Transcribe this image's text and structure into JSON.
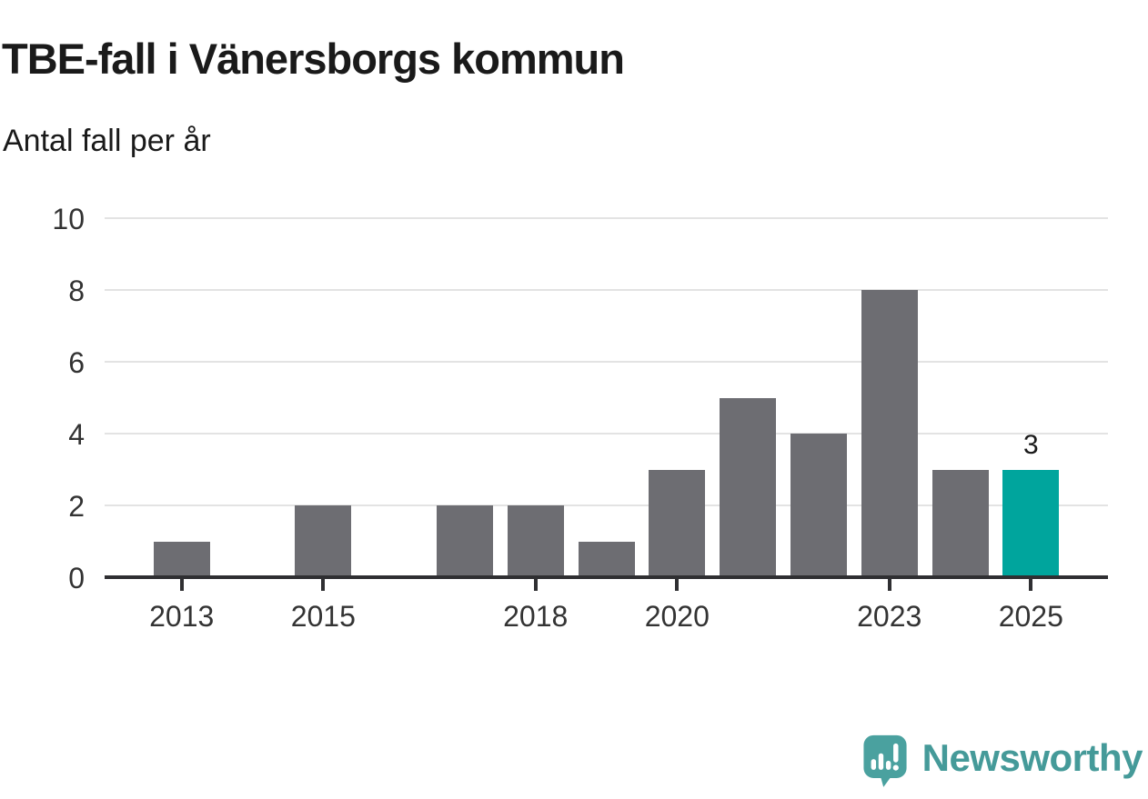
{
  "chart_data": {
    "type": "bar",
    "title": "TBE-fall i Vänersborgs kommun",
    "subtitle": "Antal fall per år",
    "categories": [
      2013,
      2014,
      2015,
      2016,
      2017,
      2018,
      2019,
      2020,
      2021,
      2022,
      2023,
      2024,
      2025
    ],
    "values": [
      1,
      0,
      2,
      0,
      2,
      2,
      1,
      3,
      5,
      4,
      8,
      3,
      3
    ],
    "ylim": [
      0,
      10
    ],
    "y_ticks": [
      0,
      2,
      4,
      6,
      8,
      10
    ],
    "x_tick_years": [
      2013,
      2015,
      2018,
      2020,
      2023,
      2025
    ],
    "highlight_category": 2025,
    "bar_value_labels": [
      {
        "category": 2025,
        "label": "3"
      }
    ],
    "grid": true,
    "legend": "none",
    "colors": {
      "bar": "#6d6d72",
      "highlight": "#00a59d",
      "grid": "#e3e3e3",
      "axis": "#2f2f32",
      "heading_text": "#1a1a1a",
      "tick_text": "#333333"
    }
  },
  "footer": {
    "brand": "Newsworthy",
    "brand_color": "#459a99",
    "logo_icon": "speech-bubble-bar-chart-exclamation"
  }
}
